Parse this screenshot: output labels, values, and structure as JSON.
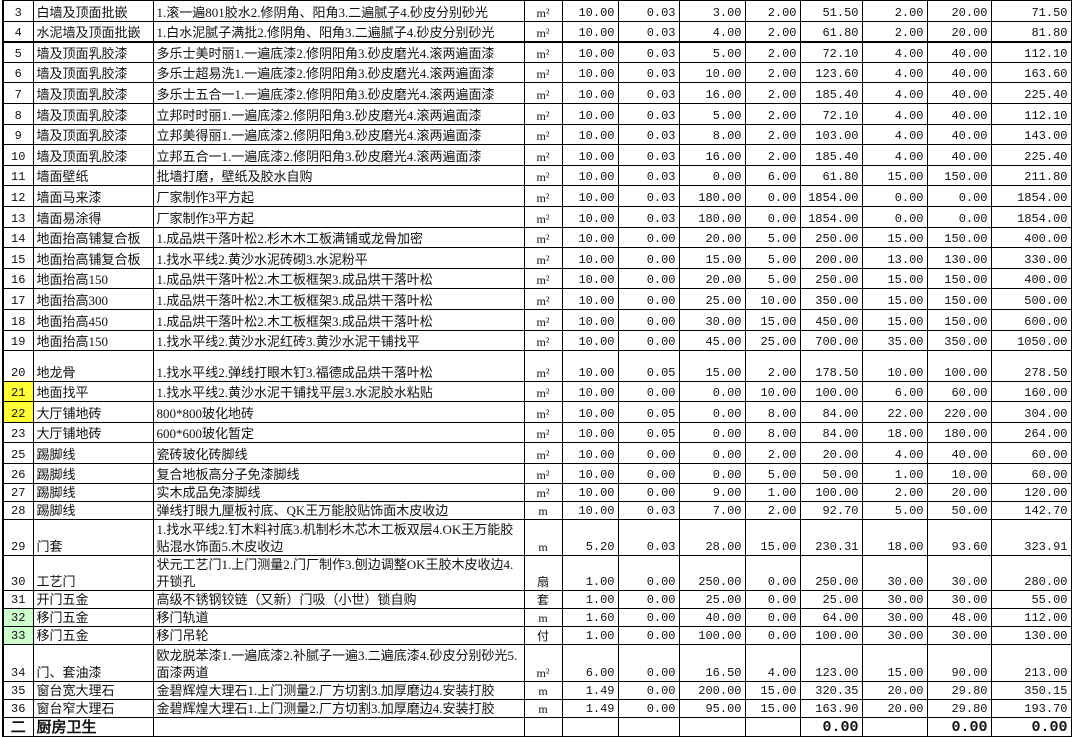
{
  "colors": {
    "highlight_yellow": "#ffff33",
    "highlight_green": "#ccffcc"
  },
  "rows": [
    {
      "no": "3",
      "name": "白墙及顶面批嵌",
      "desc": "1.滚一遍801胶水2.修阴角、阳角3.二遍腻子4.砂皮分别砂光",
      "unit": "m²",
      "values": [
        "10.00",
        "0.03",
        "3.00",
        "2.00",
        "51.50",
        "2.00",
        "20.00",
        "71.50"
      ]
    },
    {
      "no": "4",
      "name": "水泥墙及顶面批嵌",
      "desc": "1.白水泥腻子满批2.修阴角、阳角3.二遍腻子4.砂皮分别砂光",
      "unit": "m²",
      "values": [
        "10.00",
        "0.03",
        "4.00",
        "2.00",
        "61.80",
        "2.00",
        "20.00",
        "81.80"
      ]
    },
    {
      "no": "5",
      "name": "墙及顶面乳胶漆",
      "desc": "多乐士美时丽1.一遍底漆2.修阴阳角3.砂皮磨光4.滚两遍面漆",
      "unit": "m²",
      "values": [
        "10.00",
        "0.03",
        "5.00",
        "2.00",
        "72.10",
        "4.00",
        "40.00",
        "112.10"
      ]
    },
    {
      "no": "6",
      "name": "墙及顶面乳胶漆",
      "desc": "多乐士超易洗1.一遍底漆2.修阴阳角3.砂皮磨光4.滚两遍面漆",
      "unit": "m²",
      "values": [
        "10.00",
        "0.03",
        "10.00",
        "2.00",
        "123.60",
        "4.00",
        "40.00",
        "163.60"
      ]
    },
    {
      "no": "7",
      "name": "墙及顶面乳胶漆",
      "desc": "多乐士五合一1.一遍底漆2.修阴阳角3.砂皮磨光4.滚两遍面漆",
      "unit": "m²",
      "values": [
        "10.00",
        "0.03",
        "16.00",
        "2.00",
        "185.40",
        "4.00",
        "40.00",
        "225.40"
      ]
    },
    {
      "no": "8",
      "name": "墙及顶面乳胶漆",
      "desc": "立邦时时丽1.一遍底漆2.修阴阳角3.砂皮磨光4.滚两遍面漆",
      "unit": "m²",
      "values": [
        "10.00",
        "0.03",
        "5.00",
        "2.00",
        "72.10",
        "4.00",
        "40.00",
        "112.10"
      ]
    },
    {
      "no": "9",
      "name": "墙及顶面乳胶漆",
      "desc": "立邦美得丽1.一遍底漆2.修阴阳角3.砂皮磨光4.滚两遍面漆",
      "unit": "m²",
      "values": [
        "10.00",
        "0.03",
        "8.00",
        "2.00",
        "103.00",
        "4.00",
        "40.00",
        "143.00"
      ]
    },
    {
      "no": "10",
      "name": "墙及顶面乳胶漆",
      "desc": "立邦五合一1.一遍底漆2.修阴阳角3.砂皮磨光4.滚两遍面漆",
      "unit": "m²",
      "values": [
        "10.00",
        "0.03",
        "16.00",
        "2.00",
        "185.40",
        "4.00",
        "40.00",
        "225.40"
      ]
    },
    {
      "no": "11",
      "name": "墙面壁纸",
      "desc": "批墙打磨，壁纸及胶水自购",
      "unit": "m²",
      "values": [
        "10.00",
        "0.03",
        "0.00",
        "6.00",
        "61.80",
        "15.00",
        "150.00",
        "211.80"
      ]
    },
    {
      "no": "12",
      "name": "墙面马来漆",
      "desc": "厂家制作3平方起",
      "unit": "m²",
      "values": [
        "10.00",
        "0.03",
        "180.00",
        "0.00",
        "1854.00",
        "0.00",
        "0.00",
        "1854.00"
      ]
    },
    {
      "no": "13",
      "name": "墙面易涂得",
      "desc": "厂家制作3平方起",
      "unit": "m²",
      "values": [
        "10.00",
        "0.03",
        "180.00",
        "0.00",
        "1854.00",
        "0.00",
        "0.00",
        "1854.00"
      ]
    },
    {
      "no": "14",
      "name": "地面抬高铺复合板",
      "desc": "1.成品烘干落叶松2.杉木木工板满铺或龙骨加密",
      "unit": "m²",
      "values": [
        "10.00",
        "0.00",
        "20.00",
        "5.00",
        "250.00",
        "15.00",
        "150.00",
        "400.00"
      ]
    },
    {
      "no": "15",
      "name": "地面抬高铺复合板",
      "desc": "1.找水平线2.黄沙水泥砖砌3.水泥粉平",
      "unit": "m²",
      "values": [
        "10.00",
        "0.00",
        "15.00",
        "5.00",
        "200.00",
        "13.00",
        "130.00",
        "330.00"
      ]
    },
    {
      "no": "16",
      "name": "地面抬高150",
      "desc": "1.成品烘干落叶松2.木工板框架3.成品烘干落叶松",
      "unit": "m²",
      "values": [
        "10.00",
        "0.00",
        "20.00",
        "5.00",
        "250.00",
        "15.00",
        "150.00",
        "400.00"
      ]
    },
    {
      "no": "17",
      "name": "地面抬高300",
      "desc": "1.成品烘干落叶松2.木工板框架3.成品烘干落叶松",
      "unit": "m²",
      "values": [
        "10.00",
        "0.00",
        "25.00",
        "10.00",
        "350.00",
        "15.00",
        "150.00",
        "500.00"
      ]
    },
    {
      "no": "18",
      "name": "地面抬高450",
      "desc": "1.成品烘干落叶松2.木工板框架3.成品烘干落叶松",
      "unit": "m²",
      "values": [
        "10.00",
        "0.00",
        "30.00",
        "15.00",
        "450.00",
        "15.00",
        "150.00",
        "600.00"
      ]
    },
    {
      "no": "19",
      "name": "地面抬高150",
      "desc": "1.找水平线2.黄沙水泥红砖3.黄沙水泥干铺找平",
      "unit": "m²",
      "values": [
        "10.00",
        "0.00",
        "45.00",
        "25.00",
        "700.00",
        "35.00",
        "350.00",
        "1050.00"
      ]
    },
    {
      "no": "20",
      "name": "地龙骨",
      "desc": "1.找水平线2.弹线打眼木钉3.福德成品烘干落叶松",
      "unit": "m²",
      "values": [
        "10.00",
        "0.05",
        "15.00",
        "2.00",
        "178.50",
        "10.00",
        "100.00",
        "278.50"
      ]
    },
    {
      "no": "21",
      "name": "地面找平",
      "desc": "1.找水平线2.黄沙水泥干铺找平层3.水泥胶水粘贴",
      "unit": "m²",
      "values": [
        "10.00",
        "0.00",
        "0.00",
        "10.00",
        "100.00",
        "6.00",
        "60.00",
        "160.00"
      ],
      "highlight": "yellow"
    },
    {
      "no": "22",
      "name": "大厅铺地砖",
      "desc": "800*800玻化地砖",
      "unit": "m²",
      "values": [
        "10.00",
        "0.05",
        "0.00",
        "8.00",
        "84.00",
        "22.00",
        "220.00",
        "304.00"
      ],
      "highlight": "yellow"
    },
    {
      "no": "23",
      "name": "大厅铺地砖",
      "desc": "600*600玻化暂定",
      "unit": "m²",
      "values": [
        "10.00",
        "0.05",
        "0.00",
        "8.00",
        "84.00",
        "18.00",
        "180.00",
        "264.00"
      ]
    },
    {
      "no": "25",
      "name": "踢脚线",
      "desc": "瓷砖玻化砖脚线",
      "unit": "m²",
      "values": [
        "10.00",
        "0.00",
        "0.00",
        "2.00",
        "20.00",
        "4.00",
        "40.00",
        "60.00"
      ]
    },
    {
      "no": "26",
      "name": "踢脚线",
      "desc": "复合地板高分子免漆脚线",
      "unit": "m²",
      "values": [
        "10.00",
        "0.00",
        "0.00",
        "5.00",
        "50.00",
        "1.00",
        "10.00",
        "60.00"
      ]
    },
    {
      "no": "27",
      "name": "踢脚线",
      "desc": "实木成品免漆脚线",
      "unit": "m²",
      "values": [
        "10.00",
        "0.00",
        "9.00",
        "1.00",
        "100.00",
        "2.00",
        "20.00",
        "120.00"
      ]
    },
    {
      "no": "28",
      "name": "踢脚线",
      "desc": "弹线打眼九厘板衬底、QK王万能胶贴饰面木皮收边",
      "unit": "m",
      "values": [
        "10.00",
        "0.03",
        "7.00",
        "2.00",
        "92.70",
        "5.00",
        "50.00",
        "142.70"
      ]
    },
    {
      "no": "29",
      "name": "门套",
      "desc": "1.找水平线2.钉木料衬底3.机制杉木芯木工板双层4.OK王万能胶贴混水饰面5.木皮收边",
      "unit": "m",
      "values": [
        "5.20",
        "0.03",
        "28.00",
        "15.00",
        "230.31",
        "18.00",
        "93.60",
        "323.91"
      ]
    },
    {
      "no": "30",
      "name": "工艺门",
      "desc": "状元工艺门1.上门测量2.门厂制作3.刨边调整OK王胶木皮收边4.开锁孔",
      "unit": "扇",
      "values": [
        "1.00",
        "0.00",
        "250.00",
        "0.00",
        "250.00",
        "30.00",
        "30.00",
        "280.00"
      ]
    },
    {
      "no": "31",
      "name": "开门五金",
      "desc": "高级不锈钢铰链（又新）门吸（小世）锁自购",
      "unit": "套",
      "values": [
        "1.00",
        "0.00",
        "25.00",
        "0.00",
        "25.00",
        "30.00",
        "30.00",
        "55.00"
      ]
    },
    {
      "no": "32",
      "name": "移门五金",
      "desc": "移门轨道",
      "unit": "m",
      "values": [
        "1.60",
        "0.00",
        "40.00",
        "0.00",
        "64.00",
        "30.00",
        "48.00",
        "112.00"
      ],
      "highlight": "green"
    },
    {
      "no": "33",
      "name": "移门五金",
      "desc": "移门吊轮",
      "unit": "付",
      "values": [
        "1.00",
        "0.00",
        "100.00",
        "0.00",
        "100.00",
        "30.00",
        "30.00",
        "130.00"
      ],
      "highlight": "green"
    },
    {
      "no": "34",
      "name": "门、套油漆",
      "desc": "欧龙脱苯漆1.一遍底漆2.补腻子一遍3.二遍底漆4.砂皮分别砂光5.面漆两道",
      "unit": "m²",
      "values": [
        "6.00",
        "0.00",
        "16.50",
        "4.00",
        "123.00",
        "15.00",
        "90.00",
        "213.00"
      ]
    },
    {
      "no": "35",
      "name": "窗台宽大理石",
      "desc": "金碧辉煌大理石1.上门测量2.厂方切割3.加厚磨边4.安装打胶",
      "unit": "m",
      "values": [
        "1.49",
        "0.00",
        "200.00",
        "15.00",
        "320.35",
        "20.00",
        "29.80",
        "350.15"
      ]
    },
    {
      "no": "36",
      "name": "窗台窄大理石",
      "desc": "金碧辉煌大理石1.上门测量2.厂方切割3.加厚磨边4.安装打胶",
      "unit": "m",
      "values": [
        "1.49",
        "0.00",
        "95.00",
        "15.00",
        "163.90",
        "20.00",
        "29.80",
        "193.70"
      ]
    },
    {
      "no": "二",
      "name": "厨房卫生",
      "desc": "",
      "unit": "",
      "values": [
        "",
        "",
        "",
        "",
        "0.00",
        "",
        "0.00",
        "0.00"
      ],
      "section": true
    }
  ]
}
